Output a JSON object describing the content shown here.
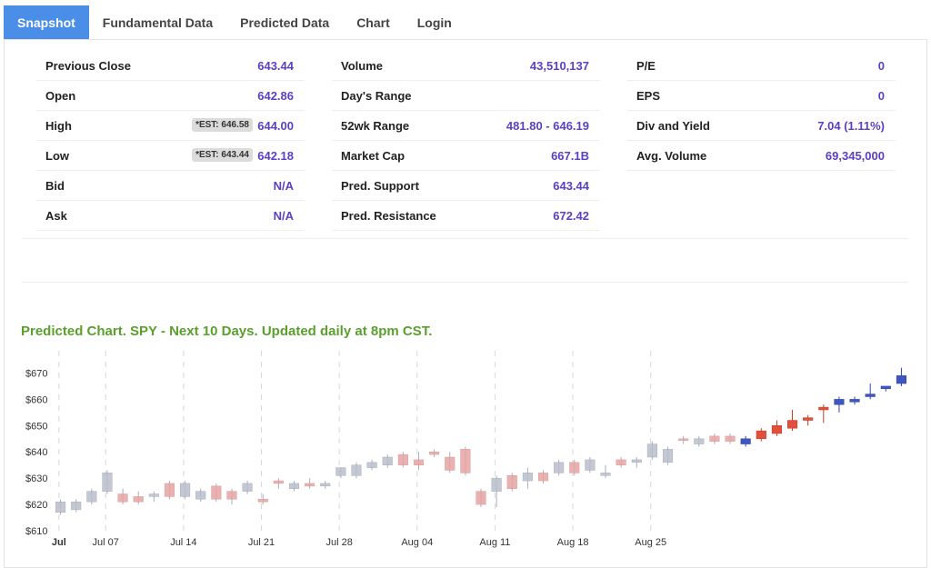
{
  "tabs": [
    {
      "label": "Snapshot",
      "active": true
    },
    {
      "label": "Fundamental Data",
      "active": false
    },
    {
      "label": "Predicted Data",
      "active": false
    },
    {
      "label": "Chart",
      "active": false
    },
    {
      "label": "Login",
      "active": false
    }
  ],
  "stats": {
    "col1": [
      {
        "label": "Previous Close",
        "value": "643.44",
        "est": ""
      },
      {
        "label": "Open",
        "value": "642.86",
        "est": ""
      },
      {
        "label": "High",
        "value": "644.00",
        "est": "*EST: 646.58"
      },
      {
        "label": "Low",
        "value": "642.18",
        "est": "*EST: 643.44"
      },
      {
        "label": "Bid",
        "value": "N/A",
        "est": ""
      },
      {
        "label": "Ask",
        "value": "N/A",
        "est": ""
      }
    ],
    "col2": [
      {
        "label": "Volume",
        "value": "43,510,137"
      },
      {
        "label": "Day's Range",
        "value": ""
      },
      {
        "label": "52wk Range",
        "value": "481.80 - 646.19"
      },
      {
        "label": "Market Cap",
        "value": "667.1B"
      },
      {
        "label": "Pred. Support",
        "value": "643.44"
      },
      {
        "label": "Pred. Resistance",
        "value": "672.42"
      }
    ],
    "col3": [
      {
        "label": "P/E",
        "value": "0"
      },
      {
        "label": "EPS",
        "value": "0"
      },
      {
        "label": "Div and Yield",
        "value": "7.04 (1.11%)"
      },
      {
        "label": "Avg. Volume",
        "value": "69,345,000"
      }
    ]
  },
  "colors": {
    "accent": "#5b3fc4",
    "tab_active": "#4a8ee8",
    "title_green": "#5aa02c"
  },
  "chart_data": {
    "type": "candlestick",
    "title": "Predicted Chart. SPY - Next 10 Days. Updated daily at 8pm CST.",
    "ylim": [
      610,
      675
    ],
    "yticks": [
      610,
      620,
      630,
      640,
      650,
      660,
      670
    ],
    "ytick_labels": [
      "$610",
      "$620",
      "$630",
      "$640",
      "$650",
      "$660",
      "$670"
    ],
    "xticks": [
      {
        "label": "Jul",
        "index": 0
      },
      {
        "label": "Jul 07",
        "index": 3
      },
      {
        "label": "Jul 14",
        "index": 8
      },
      {
        "label": "Jul 21",
        "index": 13
      },
      {
        "label": "Jul 28",
        "index": 18
      },
      {
        "label": "Aug 04",
        "index": 23
      },
      {
        "label": "Aug 11",
        "index": 28
      },
      {
        "label": "Aug 18",
        "index": 33
      },
      {
        "label": "Aug 25",
        "index": 38
      }
    ],
    "candles": [
      {
        "o": 617,
        "h": 622,
        "l": 616,
        "c": 621,
        "s": "hist-up"
      },
      {
        "o": 618,
        "h": 622,
        "l": 617,
        "c": 621,
        "s": "hist-up"
      },
      {
        "o": 621,
        "h": 626,
        "l": 620,
        "c": 625,
        "s": "hist-up"
      },
      {
        "o": 625,
        "h": 633,
        "l": 624,
        "c": 632,
        "s": "hist-up"
      },
      {
        "o": 624,
        "h": 626,
        "l": 620,
        "c": 621,
        "s": "hist-down"
      },
      {
        "o": 623,
        "h": 625,
        "l": 620,
        "c": 621,
        "s": "hist-down"
      },
      {
        "o": 623,
        "h": 625,
        "l": 621,
        "c": 624,
        "s": "hist-up"
      },
      {
        "o": 628,
        "h": 629,
        "l": 622,
        "c": 623,
        "s": "hist-down"
      },
      {
        "o": 623,
        "h": 629,
        "l": 622,
        "c": 628,
        "s": "hist-up"
      },
      {
        "o": 622,
        "h": 626,
        "l": 621,
        "c": 625,
        "s": "hist-up"
      },
      {
        "o": 627,
        "h": 628,
        "l": 621,
        "c": 622,
        "s": "hist-down"
      },
      {
        "o": 625,
        "h": 626,
        "l": 620,
        "c": 622,
        "s": "hist-down"
      },
      {
        "o": 625,
        "h": 629,
        "l": 624,
        "c": 628,
        "s": "hist-up"
      },
      {
        "o": 622,
        "h": 624,
        "l": 620,
        "c": 621,
        "s": "hist-down"
      },
      {
        "o": 629,
        "h": 630,
        "l": 626,
        "c": 628,
        "s": "hist-down"
      },
      {
        "o": 626,
        "h": 629,
        "l": 625,
        "c": 628,
        "s": "hist-up"
      },
      {
        "o": 628,
        "h": 630,
        "l": 626,
        "c": 627,
        "s": "hist-down"
      },
      {
        "o": 627,
        "h": 629,
        "l": 626,
        "c": 628,
        "s": "hist-up"
      },
      {
        "o": 631,
        "h": 634,
        "l": 630,
        "c": 634,
        "s": "hist-up"
      },
      {
        "o": 631,
        "h": 636,
        "l": 630,
        "c": 635,
        "s": "hist-up"
      },
      {
        "o": 634,
        "h": 637,
        "l": 633,
        "c": 636,
        "s": "hist-up"
      },
      {
        "o": 635,
        "h": 639,
        "l": 634,
        "c": 638,
        "s": "hist-up"
      },
      {
        "o": 639,
        "h": 640,
        "l": 634,
        "c": 635,
        "s": "hist-down"
      },
      {
        "o": 637,
        "h": 640,
        "l": 633,
        "c": 635,
        "s": "hist-down"
      },
      {
        "o": 640,
        "h": 641,
        "l": 638,
        "c": 639,
        "s": "hist-down"
      },
      {
        "o": 638,
        "h": 640,
        "l": 632,
        "c": 633,
        "s": "hist-down"
      },
      {
        "o": 641,
        "h": 642,
        "l": 631,
        "c": 632,
        "s": "hist-down"
      },
      {
        "o": 625,
        "h": 626,
        "l": 619,
        "c": 620,
        "s": "hist-down"
      },
      {
        "o": 625,
        "h": 631,
        "l": 619,
        "c": 630,
        "s": "hist-up"
      },
      {
        "o": 631,
        "h": 632,
        "l": 625,
        "c": 626,
        "s": "hist-down"
      },
      {
        "o": 629,
        "h": 634,
        "l": 626,
        "c": 632,
        "s": "hist-up"
      },
      {
        "o": 632,
        "h": 633,
        "l": 628,
        "c": 629,
        "s": "hist-down"
      },
      {
        "o": 632,
        "h": 637,
        "l": 631,
        "c": 636,
        "s": "hist-up"
      },
      {
        "o": 636,
        "h": 637,
        "l": 631,
        "c": 632,
        "s": "hist-down"
      },
      {
        "o": 633,
        "h": 638,
        "l": 632,
        "c": 637,
        "s": "hist-up"
      },
      {
        "o": 631,
        "h": 635,
        "l": 630,
        "c": 632,
        "s": "hist-up"
      },
      {
        "o": 637,
        "h": 638,
        "l": 634,
        "c": 635,
        "s": "hist-down"
      },
      {
        "o": 636,
        "h": 638,
        "l": 634,
        "c": 637,
        "s": "hist-up"
      },
      {
        "o": 638,
        "h": 644,
        "l": 637,
        "c": 643,
        "s": "hist-up"
      },
      {
        "o": 636,
        "h": 642,
        "l": 635,
        "c": 641,
        "s": "hist-up"
      },
      {
        "o": 645,
        "h": 646,
        "l": 643,
        "c": 645,
        "s": "hist-down"
      },
      {
        "o": 643,
        "h": 646,
        "l": 642,
        "c": 645,
        "s": "hist-up"
      },
      {
        "o": 646,
        "h": 647,
        "l": 643,
        "c": 644,
        "s": "hist-down"
      },
      {
        "o": 646,
        "h": 647,
        "l": 643,
        "c": 644,
        "s": "hist-down"
      },
      {
        "o": 643,
        "h": 646,
        "l": 642,
        "c": 645,
        "s": "pred-up"
      },
      {
        "o": 645,
        "h": 649,
        "l": 644,
        "c": 648,
        "s": "pred-down"
      },
      {
        "o": 647,
        "h": 652,
        "l": 646,
        "c": 650,
        "s": "pred-down"
      },
      {
        "o": 649,
        "h": 656,
        "l": 648,
        "c": 652,
        "s": "pred-down"
      },
      {
        "o": 652,
        "h": 654,
        "l": 650,
        "c": 653,
        "s": "pred-down"
      },
      {
        "o": 656,
        "h": 658,
        "l": 651,
        "c": 657,
        "s": "pred-down"
      },
      {
        "o": 658,
        "h": 661,
        "l": 655,
        "c": 660,
        "s": "pred-up"
      },
      {
        "o": 659,
        "h": 661,
        "l": 658,
        "c": 660,
        "s": "pred-up"
      },
      {
        "o": 661,
        "h": 666,
        "l": 660,
        "c": 662,
        "s": "pred-up"
      },
      {
        "o": 664,
        "h": 665,
        "l": 663,
        "c": 665,
        "s": "pred-up"
      },
      {
        "o": 666,
        "h": 672,
        "l": 665,
        "c": 669,
        "s": "pred-up"
      }
    ]
  }
}
